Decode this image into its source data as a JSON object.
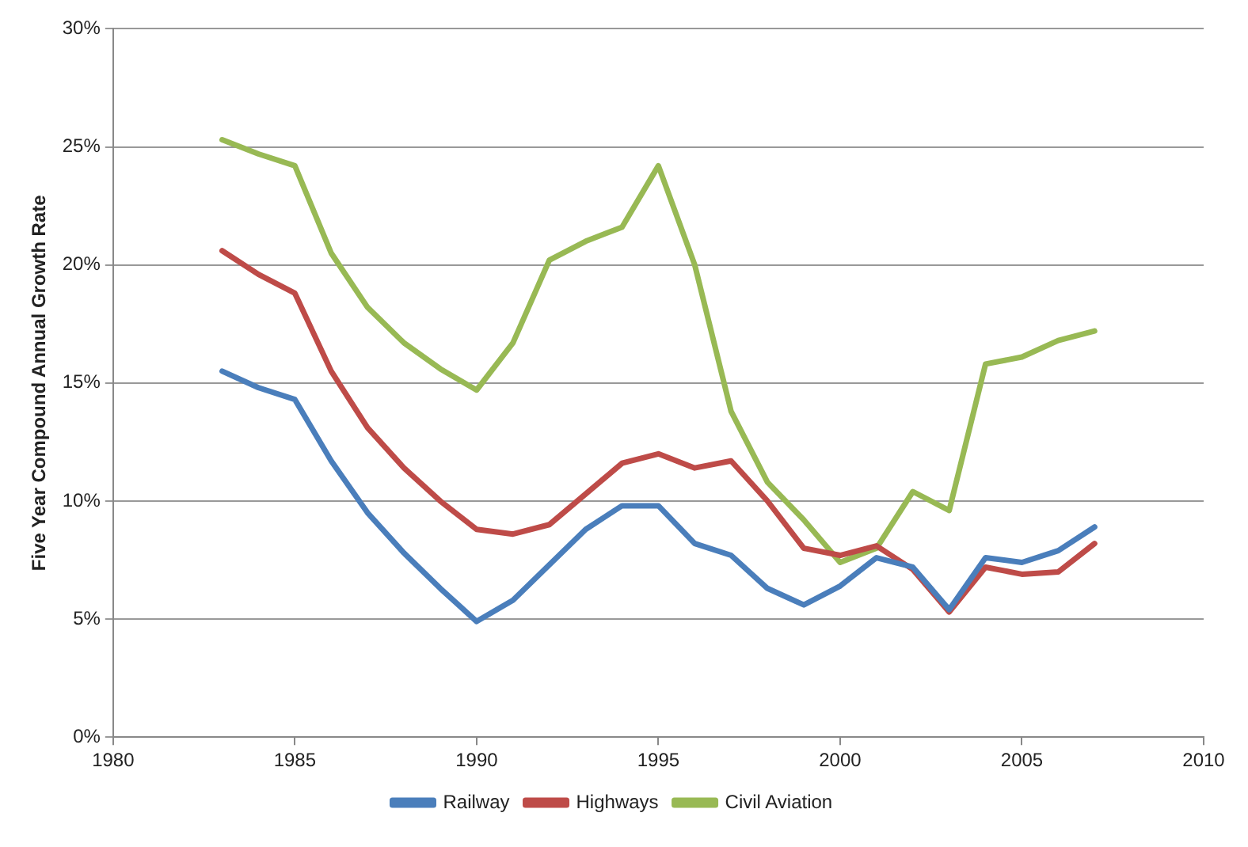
{
  "chart_data": {
    "type": "line",
    "ylabel": "Five Year Compound Annual Growth Rate",
    "x": [
      1983,
      1984,
      1985,
      1986,
      1987,
      1988,
      1989,
      1990,
      1991,
      1992,
      1993,
      1994,
      1995,
      1996,
      1997,
      1998,
      1999,
      2000,
      2001,
      2002,
      2003,
      2004,
      2005,
      2006,
      2007
    ],
    "series": [
      {
        "name": "Railway",
        "color": "#4a7ebb",
        "values": [
          15.5,
          14.8,
          14.3,
          11.7,
          9.5,
          7.8,
          6.3,
          4.9,
          5.8,
          7.3,
          8.8,
          9.8,
          9.8,
          8.2,
          7.7,
          6.3,
          5.6,
          6.4,
          7.6,
          7.2,
          5.4,
          7.6,
          7.4,
          7.9,
          8.9
        ]
      },
      {
        "name": "Highways",
        "color": "#be4b48",
        "values": [
          20.6,
          19.6,
          18.8,
          15.5,
          13.1,
          11.4,
          10.0,
          8.8,
          8.6,
          9.0,
          10.3,
          11.6,
          12.0,
          11.4,
          11.7,
          10.0,
          8.0,
          7.7,
          8.1,
          7.1,
          5.3,
          7.2,
          6.9,
          7.0,
          8.2
        ]
      },
      {
        "name": "Civil Aviation",
        "color": "#98b954",
        "values": [
          25.3,
          24.7,
          24.2,
          20.5,
          18.2,
          16.7,
          15.6,
          14.7,
          16.7,
          20.2,
          21.0,
          21.6,
          24.2,
          20.0,
          13.8,
          10.8,
          9.2,
          7.4,
          8.0,
          10.4,
          9.6,
          15.8,
          16.1,
          16.8,
          17.2
        ]
      }
    ],
    "xlim": [
      1980,
      2010
    ],
    "xticks": [
      1980,
      1985,
      1990,
      1995,
      2000,
      2005,
      2010
    ],
    "ylim": [
      0,
      30
    ],
    "yticks": [
      {
        "value": 0,
        "label": "0%"
      },
      {
        "value": 5,
        "label": "5%"
      },
      {
        "value": 10,
        "label": "10%"
      },
      {
        "value": 15,
        "label": "15%"
      },
      {
        "value": 20,
        "label": "20%"
      },
      {
        "value": 25,
        "label": "25%"
      },
      {
        "value": 30,
        "label": "30%"
      }
    ],
    "grid": "y",
    "legend": "bottom",
    "marker": "none",
    "line_style": "solid"
  }
}
